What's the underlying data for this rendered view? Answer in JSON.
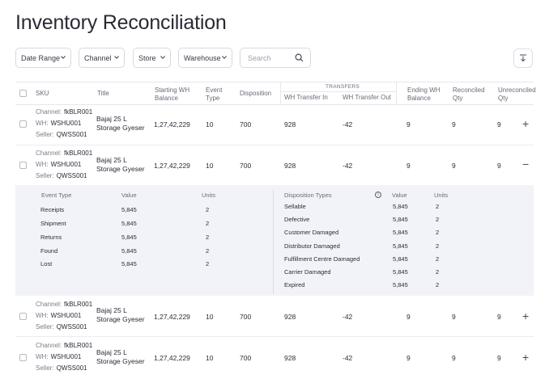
{
  "page": {
    "title": "Inventory Reconciliation"
  },
  "filters": [
    {
      "label": "Date Range"
    },
    {
      "label": "Channel"
    },
    {
      "label": "Store"
    },
    {
      "label": "Warehouse"
    }
  ],
  "search": {
    "placeholder": "Search"
  },
  "table": {
    "headers": {
      "sku": "SKU",
      "title": "Title",
      "starting_wh_balance": [
        "Starting WH",
        "Balance"
      ],
      "event_type": [
        "Event",
        "Type"
      ],
      "disposition": "Disposition",
      "transfers_group": "TRANSFERS",
      "wh_transfer_in": "WH Transfer In",
      "wh_transfer_out": "WH Transfer Out",
      "ending_wh_balance": [
        "Ending WH",
        "Balance"
      ],
      "reconciled_qty": [
        "Reconciled",
        "Qty"
      ],
      "unreconciled_qty": [
        "Unreconciled",
        "Qty"
      ]
    },
    "sku_labels": {
      "channel": "Channel:",
      "wh": "WH:",
      "seller": "Seller:"
    },
    "rows": [
      {
        "channel": "fkBLR001",
        "wh": "WSHU001",
        "seller": "QWSS001",
        "title_l1": "Bajaj 25 L",
        "title_l2": "Storage Gyeser",
        "starting": "1,27,42,229",
        "event_type": "10",
        "disposition": "700",
        "transfer_in": "928",
        "transfer_out": "-42",
        "ending": "9",
        "reconciled": "9",
        "unreconciled": "9",
        "toggle": "+"
      },
      {
        "channel": "fkBLR001",
        "wh": "WSHU001",
        "seller": "QWSS001",
        "title_l1": "Bajaj 25 L",
        "title_l2": "Storage Gyeser",
        "starting": "1,27,42,229",
        "event_type": "10",
        "disposition": "700",
        "transfer_in": "928",
        "transfer_out": "-42",
        "ending": "9",
        "reconciled": "9",
        "unreconciled": "9",
        "toggle": "−"
      },
      {
        "channel": "fkBLR001",
        "wh": "WSHU001",
        "seller": "QWSS001",
        "title_l1": "Bajaj 25 L",
        "title_l2": "Storage Gyeser",
        "starting": "1,27,42,229",
        "event_type": "10",
        "disposition": "700",
        "transfer_in": "928",
        "transfer_out": "-42",
        "ending": "9",
        "reconciled": "9",
        "unreconciled": "9",
        "toggle": "+"
      },
      {
        "channel": "fkBLR001",
        "wh": "WSHU001",
        "seller": "QWSS001",
        "title_l1": "Bajaj 25 L",
        "title_l2": "Storage Gyeser",
        "starting": "1,27,42,229",
        "event_type": "10",
        "disposition": "700",
        "transfer_in": "928",
        "transfer_out": "-42",
        "ending": "9",
        "reconciled": "9",
        "unreconciled": "9",
        "toggle": "+"
      }
    ]
  },
  "detail": {
    "events": {
      "headers": {
        "type": "Event Type",
        "value": "Value",
        "units": "Units"
      },
      "rows": [
        {
          "type": "Receipts",
          "value": "5,845",
          "units": "2"
        },
        {
          "type": "Shipment",
          "value": "5,845",
          "units": "2"
        },
        {
          "type": "Returns",
          "value": "5,845",
          "units": "2"
        },
        {
          "type": "Found",
          "value": "5,845",
          "units": "2"
        },
        {
          "type": "Lost",
          "value": "5,845",
          "units": "2"
        }
      ]
    },
    "dispositions": {
      "headers": {
        "type": "Disposition Types",
        "value": "Value",
        "units": "Units",
        "info": "i"
      },
      "rows": [
        {
          "type": "Sellable",
          "value": "5,845",
          "units": "2"
        },
        {
          "type": "Defective",
          "value": "5,845",
          "units": "2"
        },
        {
          "type": "Customer Damaged",
          "value": "5,845",
          "units": "2"
        },
        {
          "type": "Distributor Damaged",
          "value": "5,845",
          "units": "2"
        },
        {
          "type": "Fulfillment Centre Damaged",
          "value": "5,845",
          "units": "2"
        },
        {
          "type": "Carrier Damaged",
          "value": "5,845",
          "units": "2"
        },
        {
          "type": "Expired",
          "value": "5,845",
          "units": "2"
        }
      ]
    }
  }
}
